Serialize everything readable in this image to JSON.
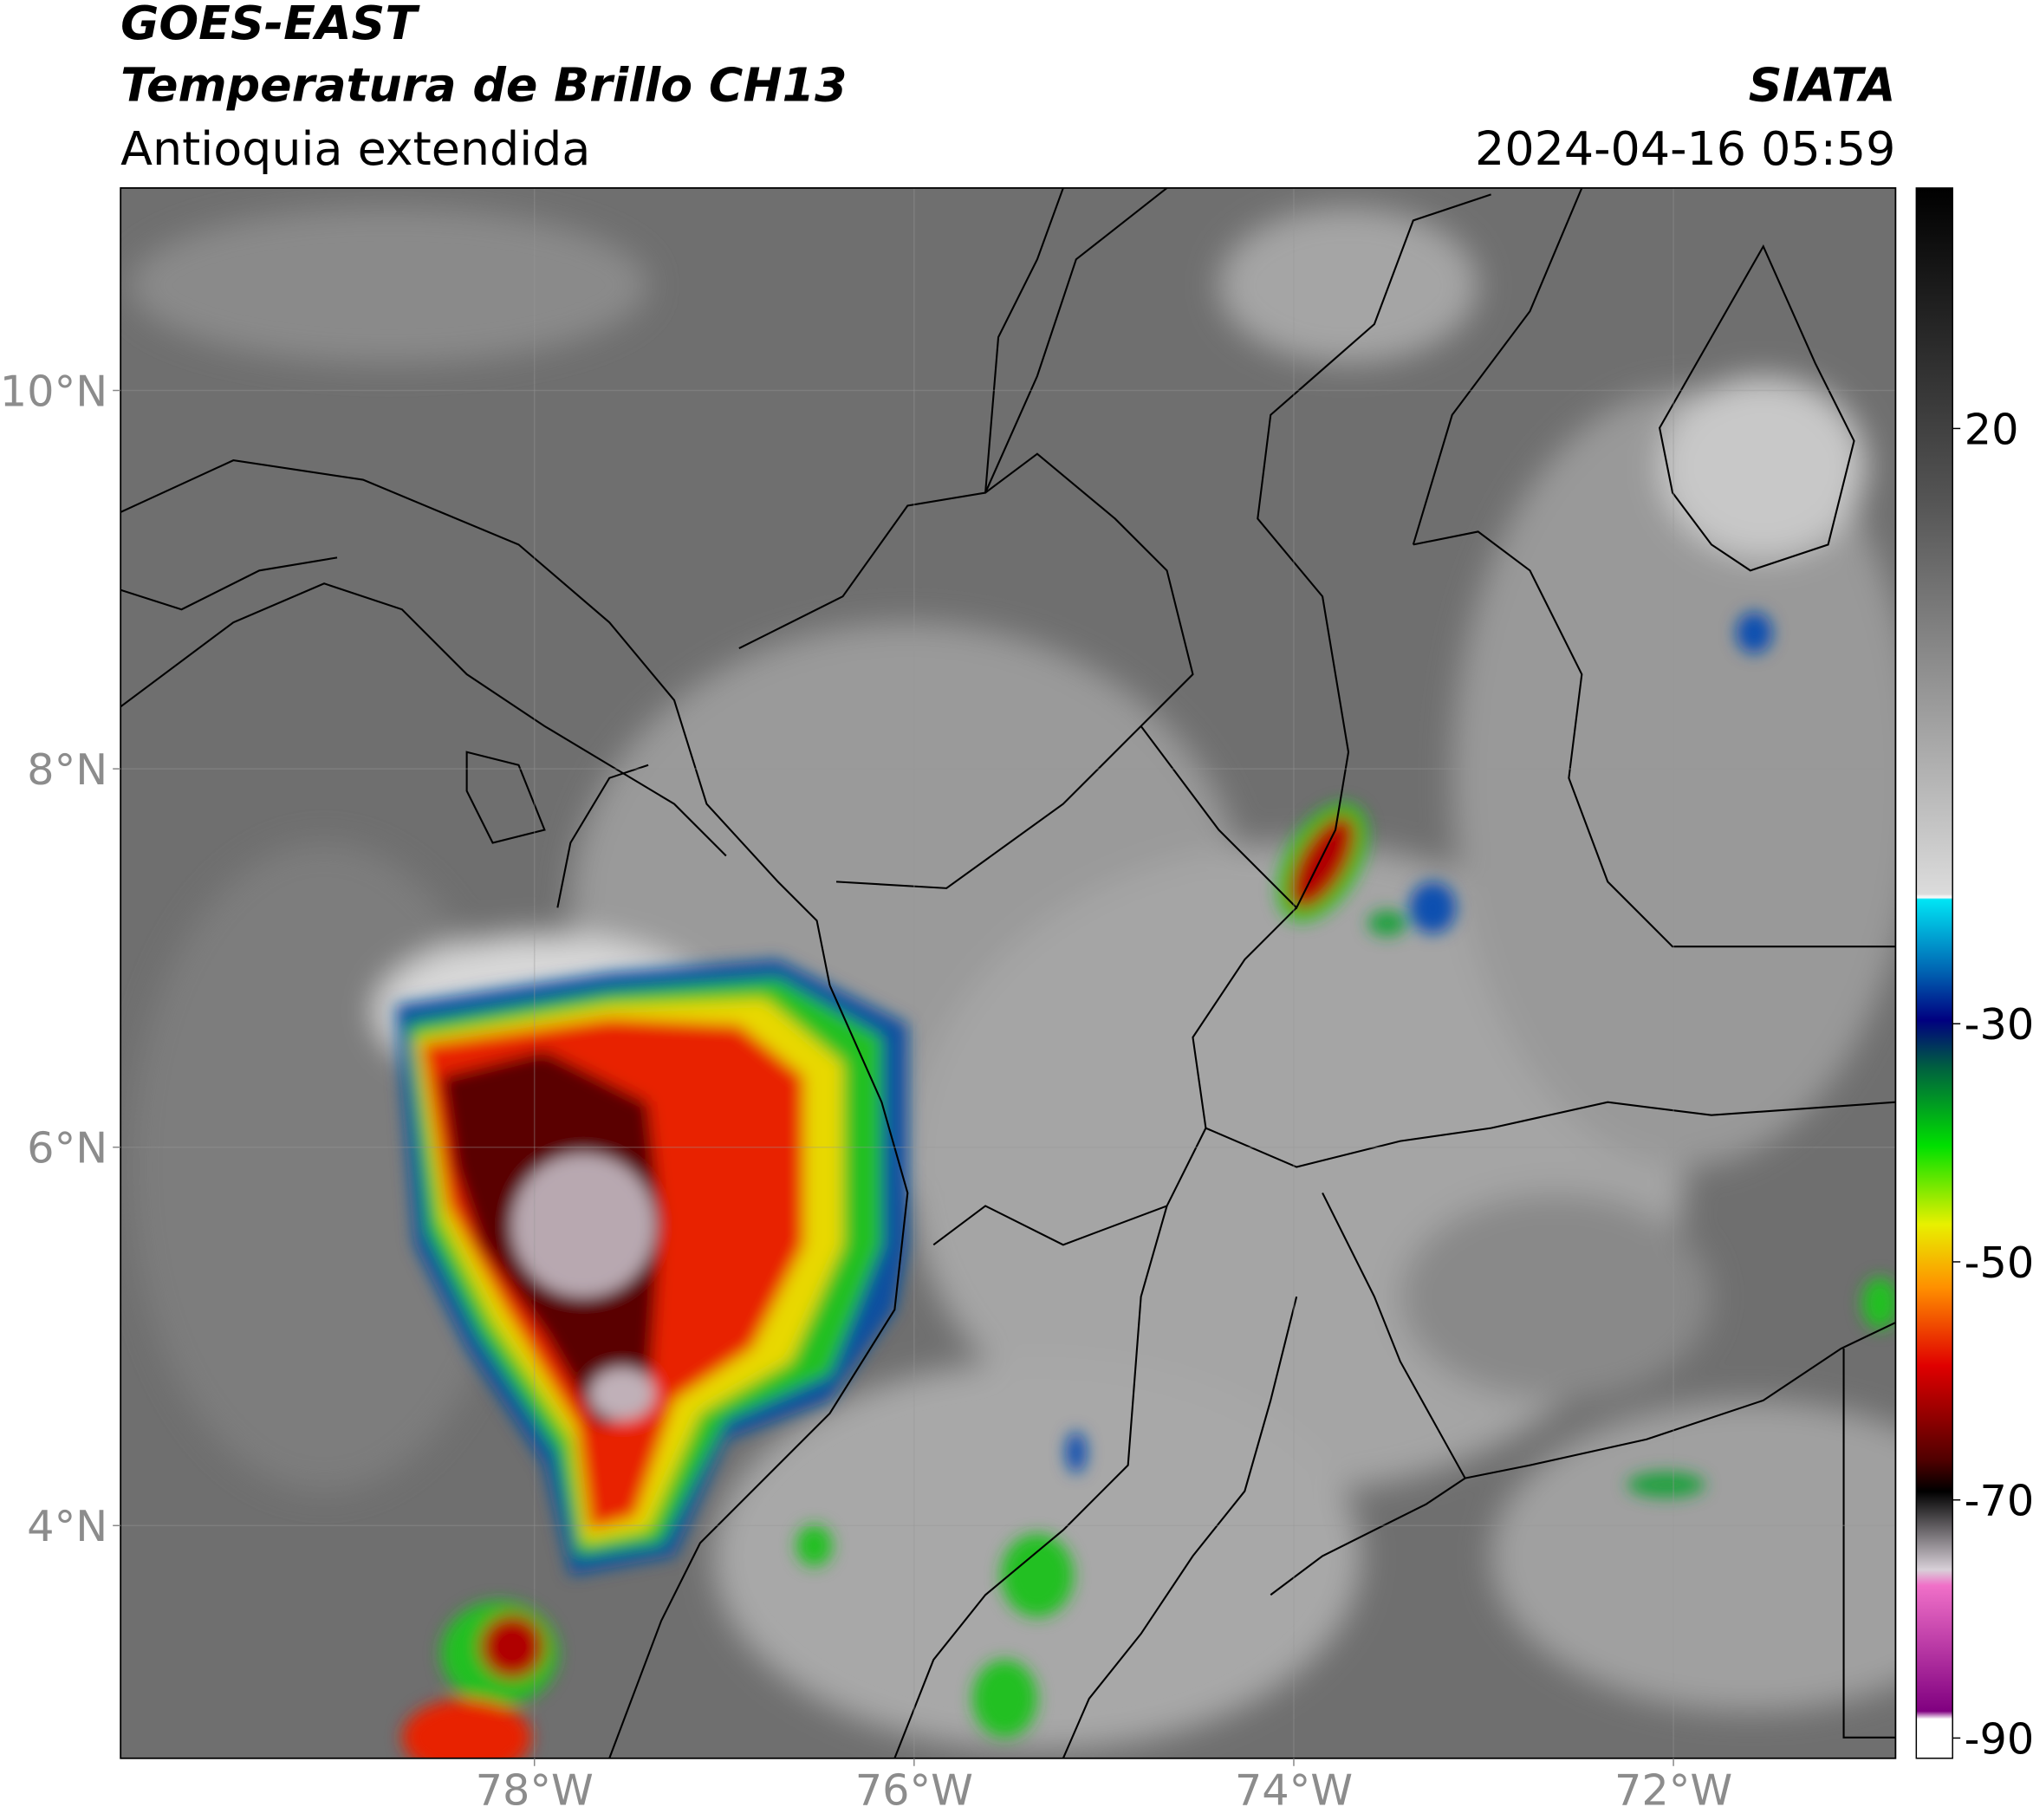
{
  "header": {
    "satellite": "GOES-EAST",
    "product": "Temperatura de Brillo CH13",
    "region": "Antioquia extendida",
    "source": "SIATA",
    "datetime": "2024-04-16 05:59"
  },
  "map": {
    "xlim": [
      -80.18,
      -70.83
    ],
    "ylim": [
      2.77,
      11.07
    ],
    "xticks": [
      {
        "value": -78,
        "label": "78°W"
      },
      {
        "value": -76,
        "label": "76°W"
      },
      {
        "value": -74,
        "label": "74°W"
      },
      {
        "value": -72,
        "label": "72°W"
      }
    ],
    "yticks": [
      {
        "value": 10,
        "label": "10°N"
      },
      {
        "value": 8,
        "label": "8°N"
      },
      {
        "value": 6,
        "label": "6°N"
      },
      {
        "value": 4,
        "label": "4°N"
      }
    ]
  },
  "colorbar": {
    "lim": [
      -91.7,
      40.2
    ],
    "ticks": [
      20,
      -30,
      -50,
      -70,
      -90
    ]
  }
}
